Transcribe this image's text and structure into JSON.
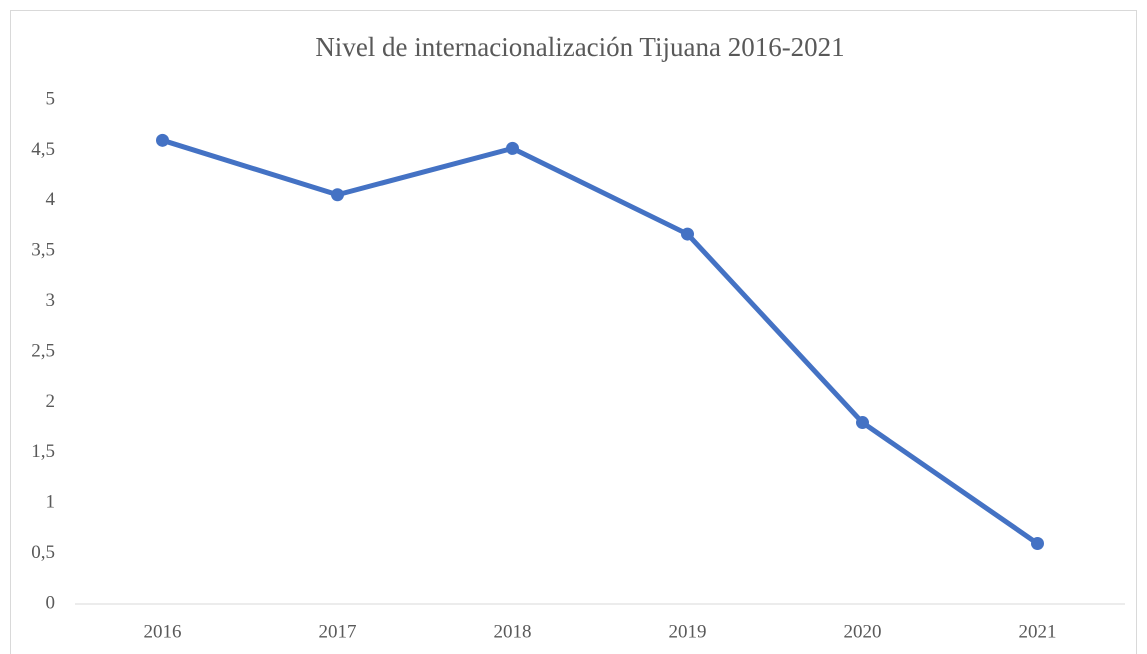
{
  "chart_data": {
    "type": "line",
    "title": "Nivel de internacionalización Tijuana 2016-2021",
    "categories": [
      "2016",
      "2017",
      "2018",
      "2019",
      "2020",
      "2021"
    ],
    "series": [
      {
        "name": "Nivel de internacionalización",
        "color": "#4472c4",
        "values": [
          4.6,
          4.06,
          4.52,
          3.67,
          1.8,
          0.6
        ]
      }
    ],
    "ylim": [
      0,
      5
    ],
    "yticks": [
      0,
      {
        "value": 0.5,
        "label": "0,5"
      },
      1,
      {
        "value": 1.5,
        "label": "1,5"
      },
      2,
      {
        "value": 2.5,
        "label": "2,5"
      },
      3,
      {
        "value": 3.5,
        "label": "3,5"
      },
      4,
      {
        "value": 4.5,
        "label": "4,5"
      },
      5
    ],
    "grid": false,
    "legend": false
  }
}
